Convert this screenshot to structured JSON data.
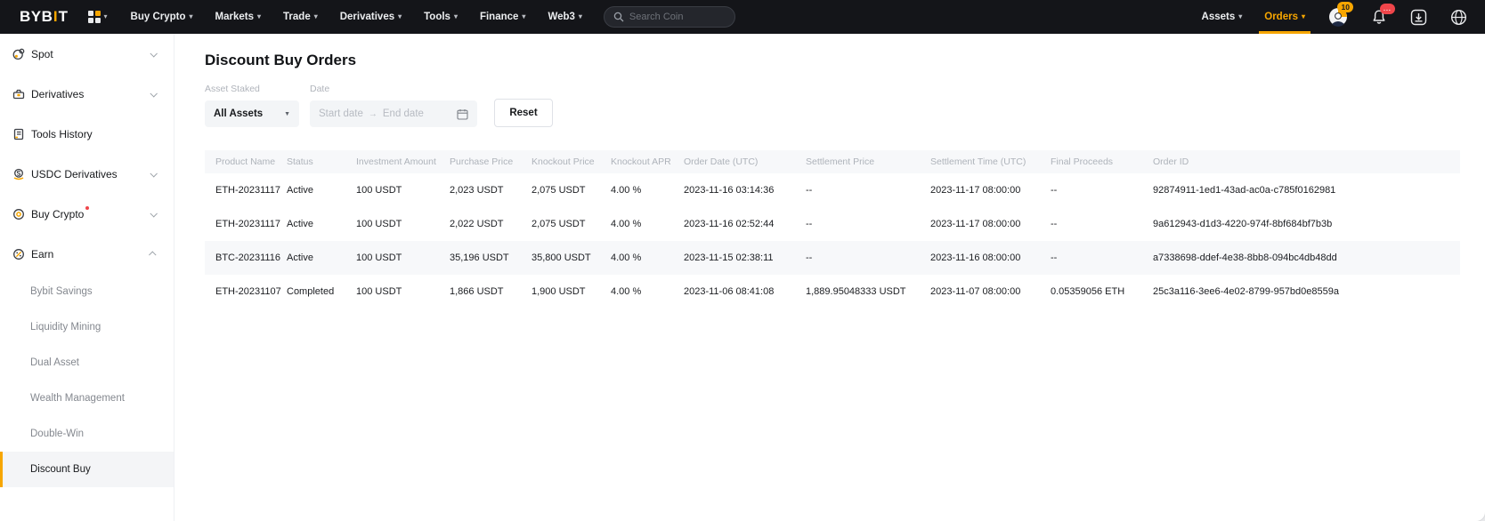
{
  "brand": {
    "logo_prefix": "BYB",
    "logo_i": "I",
    "logo_suffix": "T"
  },
  "colors": {
    "accent": "#F7A600",
    "nav_bg": "#141519",
    "badge_red": "#EF454A"
  },
  "navbar": {
    "items": [
      "Buy Crypto",
      "Markets",
      "Trade",
      "Derivatives",
      "Tools",
      "Finance",
      "Web3"
    ],
    "search_placeholder": "Search Coin",
    "right_items": [
      "Assets",
      "Orders"
    ],
    "active_right": "Orders",
    "chat_badge": "10",
    "bell_badge": "..."
  },
  "sidebar": {
    "items": [
      {
        "label": "Spot",
        "icon": "spot-icon",
        "chevron": "down",
        "dot": false
      },
      {
        "label": "Derivatives",
        "icon": "derivatives-icon",
        "chevron": "down",
        "dot": false
      },
      {
        "label": "Tools History",
        "icon": "tools-history-icon",
        "chevron": "",
        "dot": false
      },
      {
        "label": "USDC Derivatives",
        "icon": "usdc-derivatives-icon",
        "chevron": "down",
        "dot": false
      },
      {
        "label": "Buy Crypto",
        "icon": "buy-crypto-icon",
        "chevron": "down",
        "dot": true
      },
      {
        "label": "Earn",
        "icon": "earn-icon",
        "chevron": "up",
        "dot": false
      }
    ],
    "earn_subitems": [
      {
        "label": "Bybit Savings",
        "active": false
      },
      {
        "label": "Liquidity Mining",
        "active": false
      },
      {
        "label": "Dual Asset",
        "active": false
      },
      {
        "label": "Wealth Management",
        "active": false
      },
      {
        "label": "Double-Win",
        "active": false
      },
      {
        "label": "Discount Buy",
        "active": true
      }
    ]
  },
  "main": {
    "title": "Discount Buy Orders",
    "filters": {
      "asset_staked_label": "Asset Staked",
      "asset_staked_value": "All Assets",
      "date_label": "Date",
      "start_placeholder": "Start date",
      "end_placeholder": "End date",
      "reset_label": "Reset"
    },
    "table": {
      "columns": [
        "Product Name",
        "Status",
        "Investment Amount",
        "Purchase Price",
        "Knockout Price",
        "Knockout APR",
        "Order Date (UTC)",
        "Settlement Price",
        "Settlement Time (UTC)",
        "Final Proceeds",
        "Order ID"
      ],
      "rows": [
        [
          "ETH-20231117",
          "Active",
          "100 USDT",
          "2,023 USDT",
          "2,075 USDT",
          "4.00 %",
          "2023-11-16 03:14:36",
          "--",
          "2023-11-17 08:00:00",
          "--",
          "92874911-1ed1-43ad-ac0a-c785f0162981"
        ],
        [
          "ETH-20231117",
          "Active",
          "100 USDT",
          "2,022 USDT",
          "2,075 USDT",
          "4.00 %",
          "2023-11-16 02:52:44",
          "--",
          "2023-11-17 08:00:00",
          "--",
          "9a612943-d1d3-4220-974f-8bf684bf7b3b"
        ],
        [
          "BTC-20231116",
          "Active",
          "100 USDT",
          "35,196 USDT",
          "35,800 USDT",
          "4.00 %",
          "2023-11-15 02:38:11",
          "--",
          "2023-11-16 08:00:00",
          "--",
          "a7338698-ddef-4e38-8bb8-094bc4db48dd"
        ],
        [
          "ETH-20231107",
          "Completed",
          "100 USDT",
          "1,866 USDT",
          "1,900 USDT",
          "4.00 %",
          "2023-11-06 08:41:08",
          "1,889.95048333 USDT",
          "2023-11-07 08:00:00",
          "0.05359056 ETH",
          "25c3a116-3ee6-4e02-8799-957bd0e8559a"
        ]
      ],
      "highlighted_row": 2
    }
  }
}
